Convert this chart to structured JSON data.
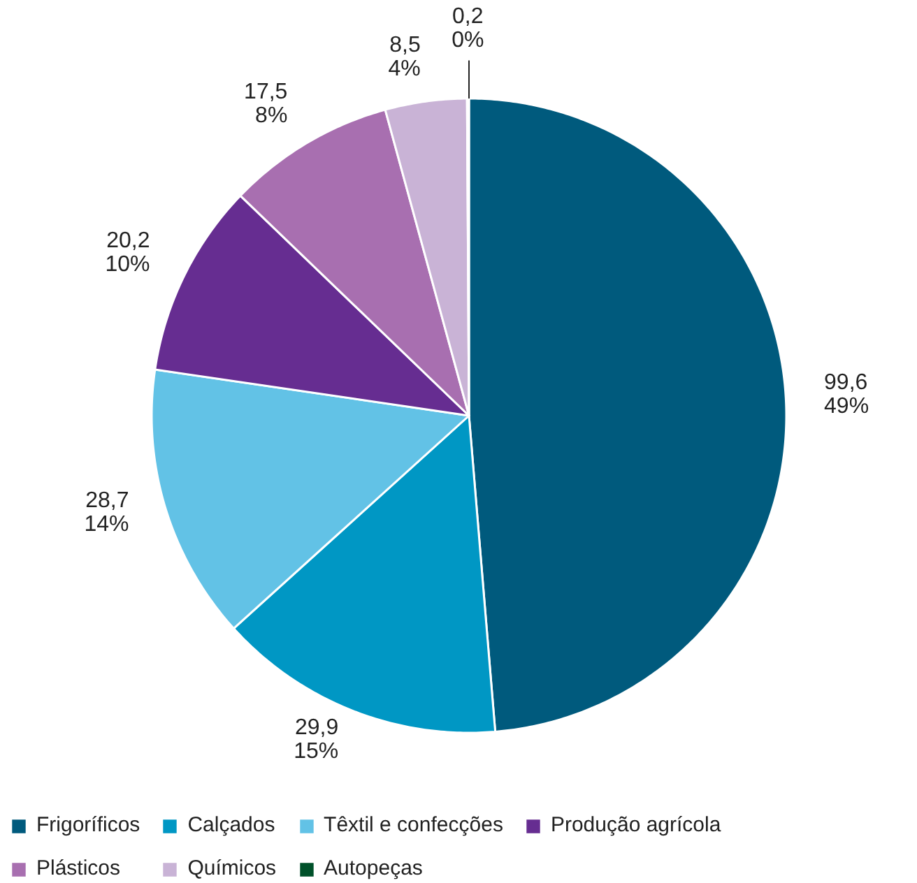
{
  "chart_data": {
    "type": "pie",
    "categories": [
      "Frigoríficos",
      "Calçados",
      "Têxtil e confecções",
      "Produção agrícola",
      "Plásticos",
      "Químicos",
      "Autopeças"
    ],
    "values": [
      99.6,
      29.9,
      28.7,
      20.2,
      17.5,
      8.5,
      0.2
    ],
    "value_labels": [
      "99,6\n49%",
      "29,9\n15%",
      "28,7\n14%",
      "20,2\n10%",
      "17,5\n8%",
      "8,5\n4%",
      "0,2\n0%"
    ],
    "colors": [
      "#005a7d",
      "#0097c4",
      "#62c2e6",
      "#662d91",
      "#a86fb0",
      "#c9b3d6",
      "#00512a"
    ],
    "legend": "bottom"
  }
}
